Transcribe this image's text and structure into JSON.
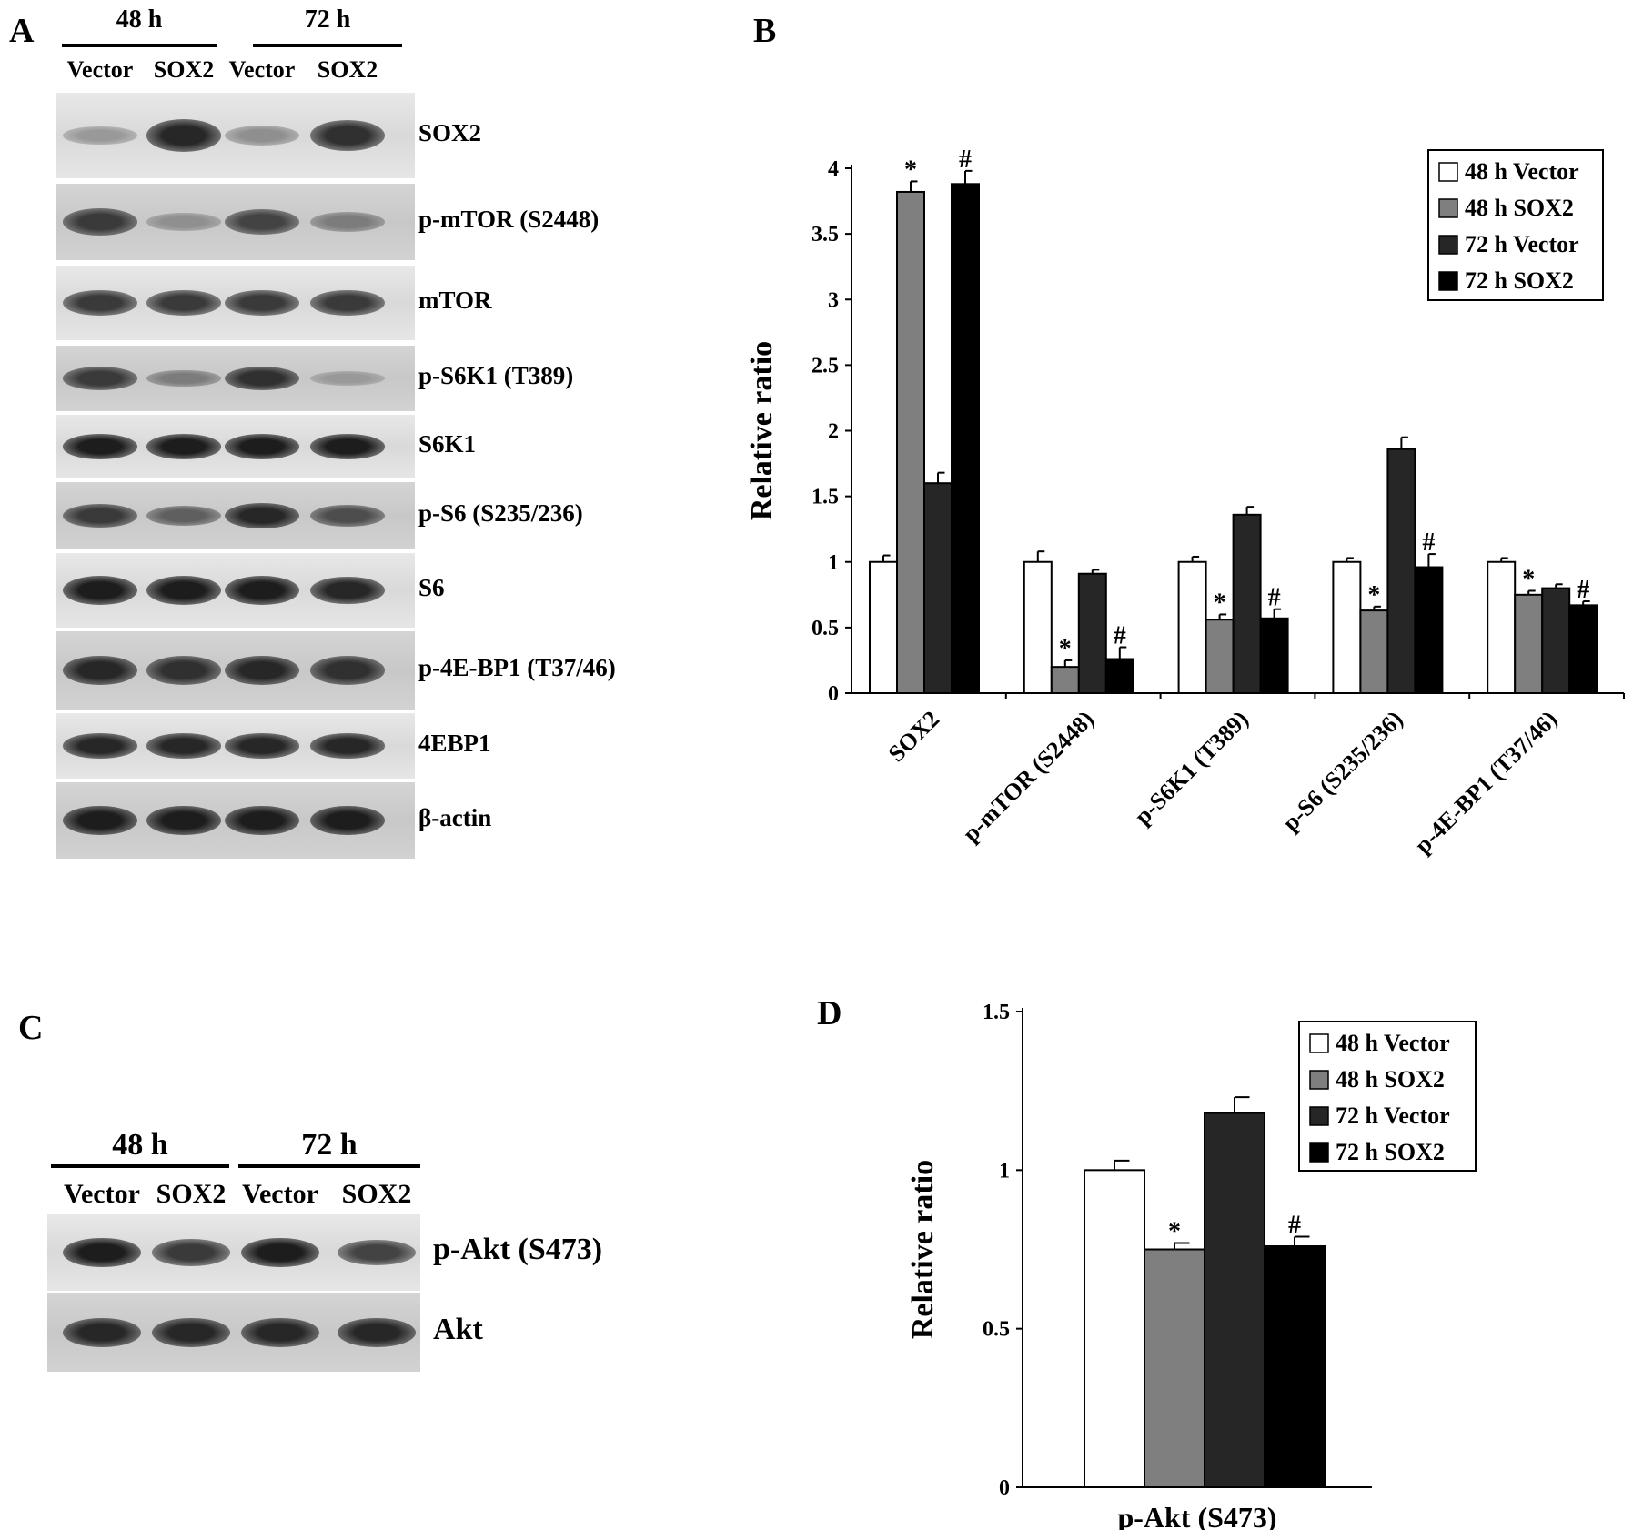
{
  "panels": {
    "a": {
      "letter": "A"
    },
    "b": {
      "letter": "B"
    },
    "c": {
      "letter": "C"
    },
    "d": {
      "letter": "D"
    }
  },
  "blot_a": {
    "groups": [
      "48 h",
      "72 h"
    ],
    "lanes": [
      "Vector",
      "SOX2",
      "Vector",
      "SOX2"
    ],
    "rows": [
      {
        "label": "SOX2",
        "bands": [
          0.25,
          0.85,
          0.3,
          0.8
        ]
      },
      {
        "label": "p-mTOR (S2448)",
        "bands": [
          0.75,
          0.3,
          0.7,
          0.4
        ]
      },
      {
        "label": "mTOR",
        "bands": [
          0.75,
          0.75,
          0.75,
          0.75
        ]
      },
      {
        "label": "p-S6K1 (T389)",
        "bands": [
          0.75,
          0.4,
          0.8,
          0.25
        ]
      },
      {
        "label": "S6K1",
        "bands": [
          0.9,
          0.9,
          0.9,
          0.9
        ]
      },
      {
        "label": "p-S6 (S235/236)",
        "bands": [
          0.75,
          0.55,
          0.85,
          0.65
        ]
      },
      {
        "label": "S6",
        "bands": [
          0.9,
          0.9,
          0.9,
          0.85
        ]
      },
      {
        "label": "p-4E-BP1 (T37/46)",
        "bands": [
          0.85,
          0.8,
          0.85,
          0.8
        ]
      },
      {
        "label": "4EBP1",
        "bands": [
          0.85,
          0.85,
          0.85,
          0.85
        ]
      },
      {
        "label": "β-actin",
        "bands": [
          0.9,
          0.9,
          0.9,
          0.9
        ]
      }
    ]
  },
  "blot_c": {
    "groups": [
      "48 h",
      "72 h"
    ],
    "lanes": [
      "Vector",
      "SOX2",
      "Vector",
      "SOX2"
    ],
    "rows": [
      {
        "label": "p-Akt (S473)",
        "bands": [
          0.9,
          0.75,
          0.9,
          0.7
        ]
      },
      {
        "label": "Akt",
        "bands": [
          0.85,
          0.85,
          0.85,
          0.85
        ]
      }
    ]
  },
  "colors": {
    "48 h Vector": "#ffffff",
    "48 h SOX2": "#7f7f7f",
    "72 h Vector": "#262626",
    "72 h SOX2": "#000000"
  },
  "chart_data": [
    {
      "type": "bar",
      "title": "",
      "xlabel": "",
      "ylabel": "Relative ratio",
      "ylim": [
        0,
        4
      ],
      "yticks": [
        "0",
        "0.5",
        "1",
        "1.5",
        "2",
        "2.5",
        "3",
        "3.5",
        "4"
      ],
      "categories": [
        "SOX2",
        "p-mTOR (S2448)",
        "p-S6K1 (T389)",
        "p-S6 (S235/236)",
        "p-4E-BP1 (T37/46)"
      ],
      "series": [
        {
          "name": "48 h Vector",
          "values": [
            1.0,
            1.0,
            1.0,
            1.0,
            1.0
          ],
          "errors": [
            0.05,
            0.08,
            0.04,
            0.03,
            0.03
          ],
          "marks": [
            "",
            "",
            "",
            "",
            ""
          ]
        },
        {
          "name": "48 h SOX2",
          "values": [
            3.82,
            0.2,
            0.56,
            0.63,
            0.75
          ],
          "errors": [
            0.08,
            0.05,
            0.04,
            0.03,
            0.03
          ],
          "marks": [
            "*",
            "*",
            "*",
            "*",
            "*"
          ]
        },
        {
          "name": "72 h Vector",
          "values": [
            1.6,
            0.91,
            1.36,
            1.86,
            0.8
          ],
          "errors": [
            0.08,
            0.03,
            0.06,
            0.09,
            0.03
          ],
          "marks": [
            "",
            "",
            "",
            "",
            ""
          ]
        },
        {
          "name": "72 h SOX2",
          "values": [
            3.88,
            0.26,
            0.57,
            0.96,
            0.67
          ],
          "errors": [
            0.1,
            0.09,
            0.07,
            0.1,
            0.03
          ],
          "marks": [
            "#",
            "#",
            "#",
            "#",
            "#"
          ]
        }
      ],
      "legend_position": "top-right"
    },
    {
      "type": "bar",
      "title": "",
      "xlabel": "p-Akt (S473)",
      "ylabel": "Relative ratio",
      "ylim": [
        0,
        1.5
      ],
      "yticks": [
        "0",
        "0.5",
        "1",
        "1.5"
      ],
      "categories": [
        "p-Akt (S473)"
      ],
      "series": [
        {
          "name": "48 h Vector",
          "values": [
            1.0
          ],
          "errors": [
            0.03
          ],
          "marks": [
            ""
          ]
        },
        {
          "name": "48 h SOX2",
          "values": [
            0.75
          ],
          "errors": [
            0.02
          ],
          "marks": [
            "*"
          ]
        },
        {
          "name": "72 h Vector",
          "values": [
            1.18
          ],
          "errors": [
            0.05
          ],
          "marks": [
            ""
          ]
        },
        {
          "name": "72 h SOX2",
          "values": [
            0.76
          ],
          "errors": [
            0.03
          ],
          "marks": [
            "#"
          ]
        }
      ],
      "legend_position": "top-right"
    }
  ]
}
